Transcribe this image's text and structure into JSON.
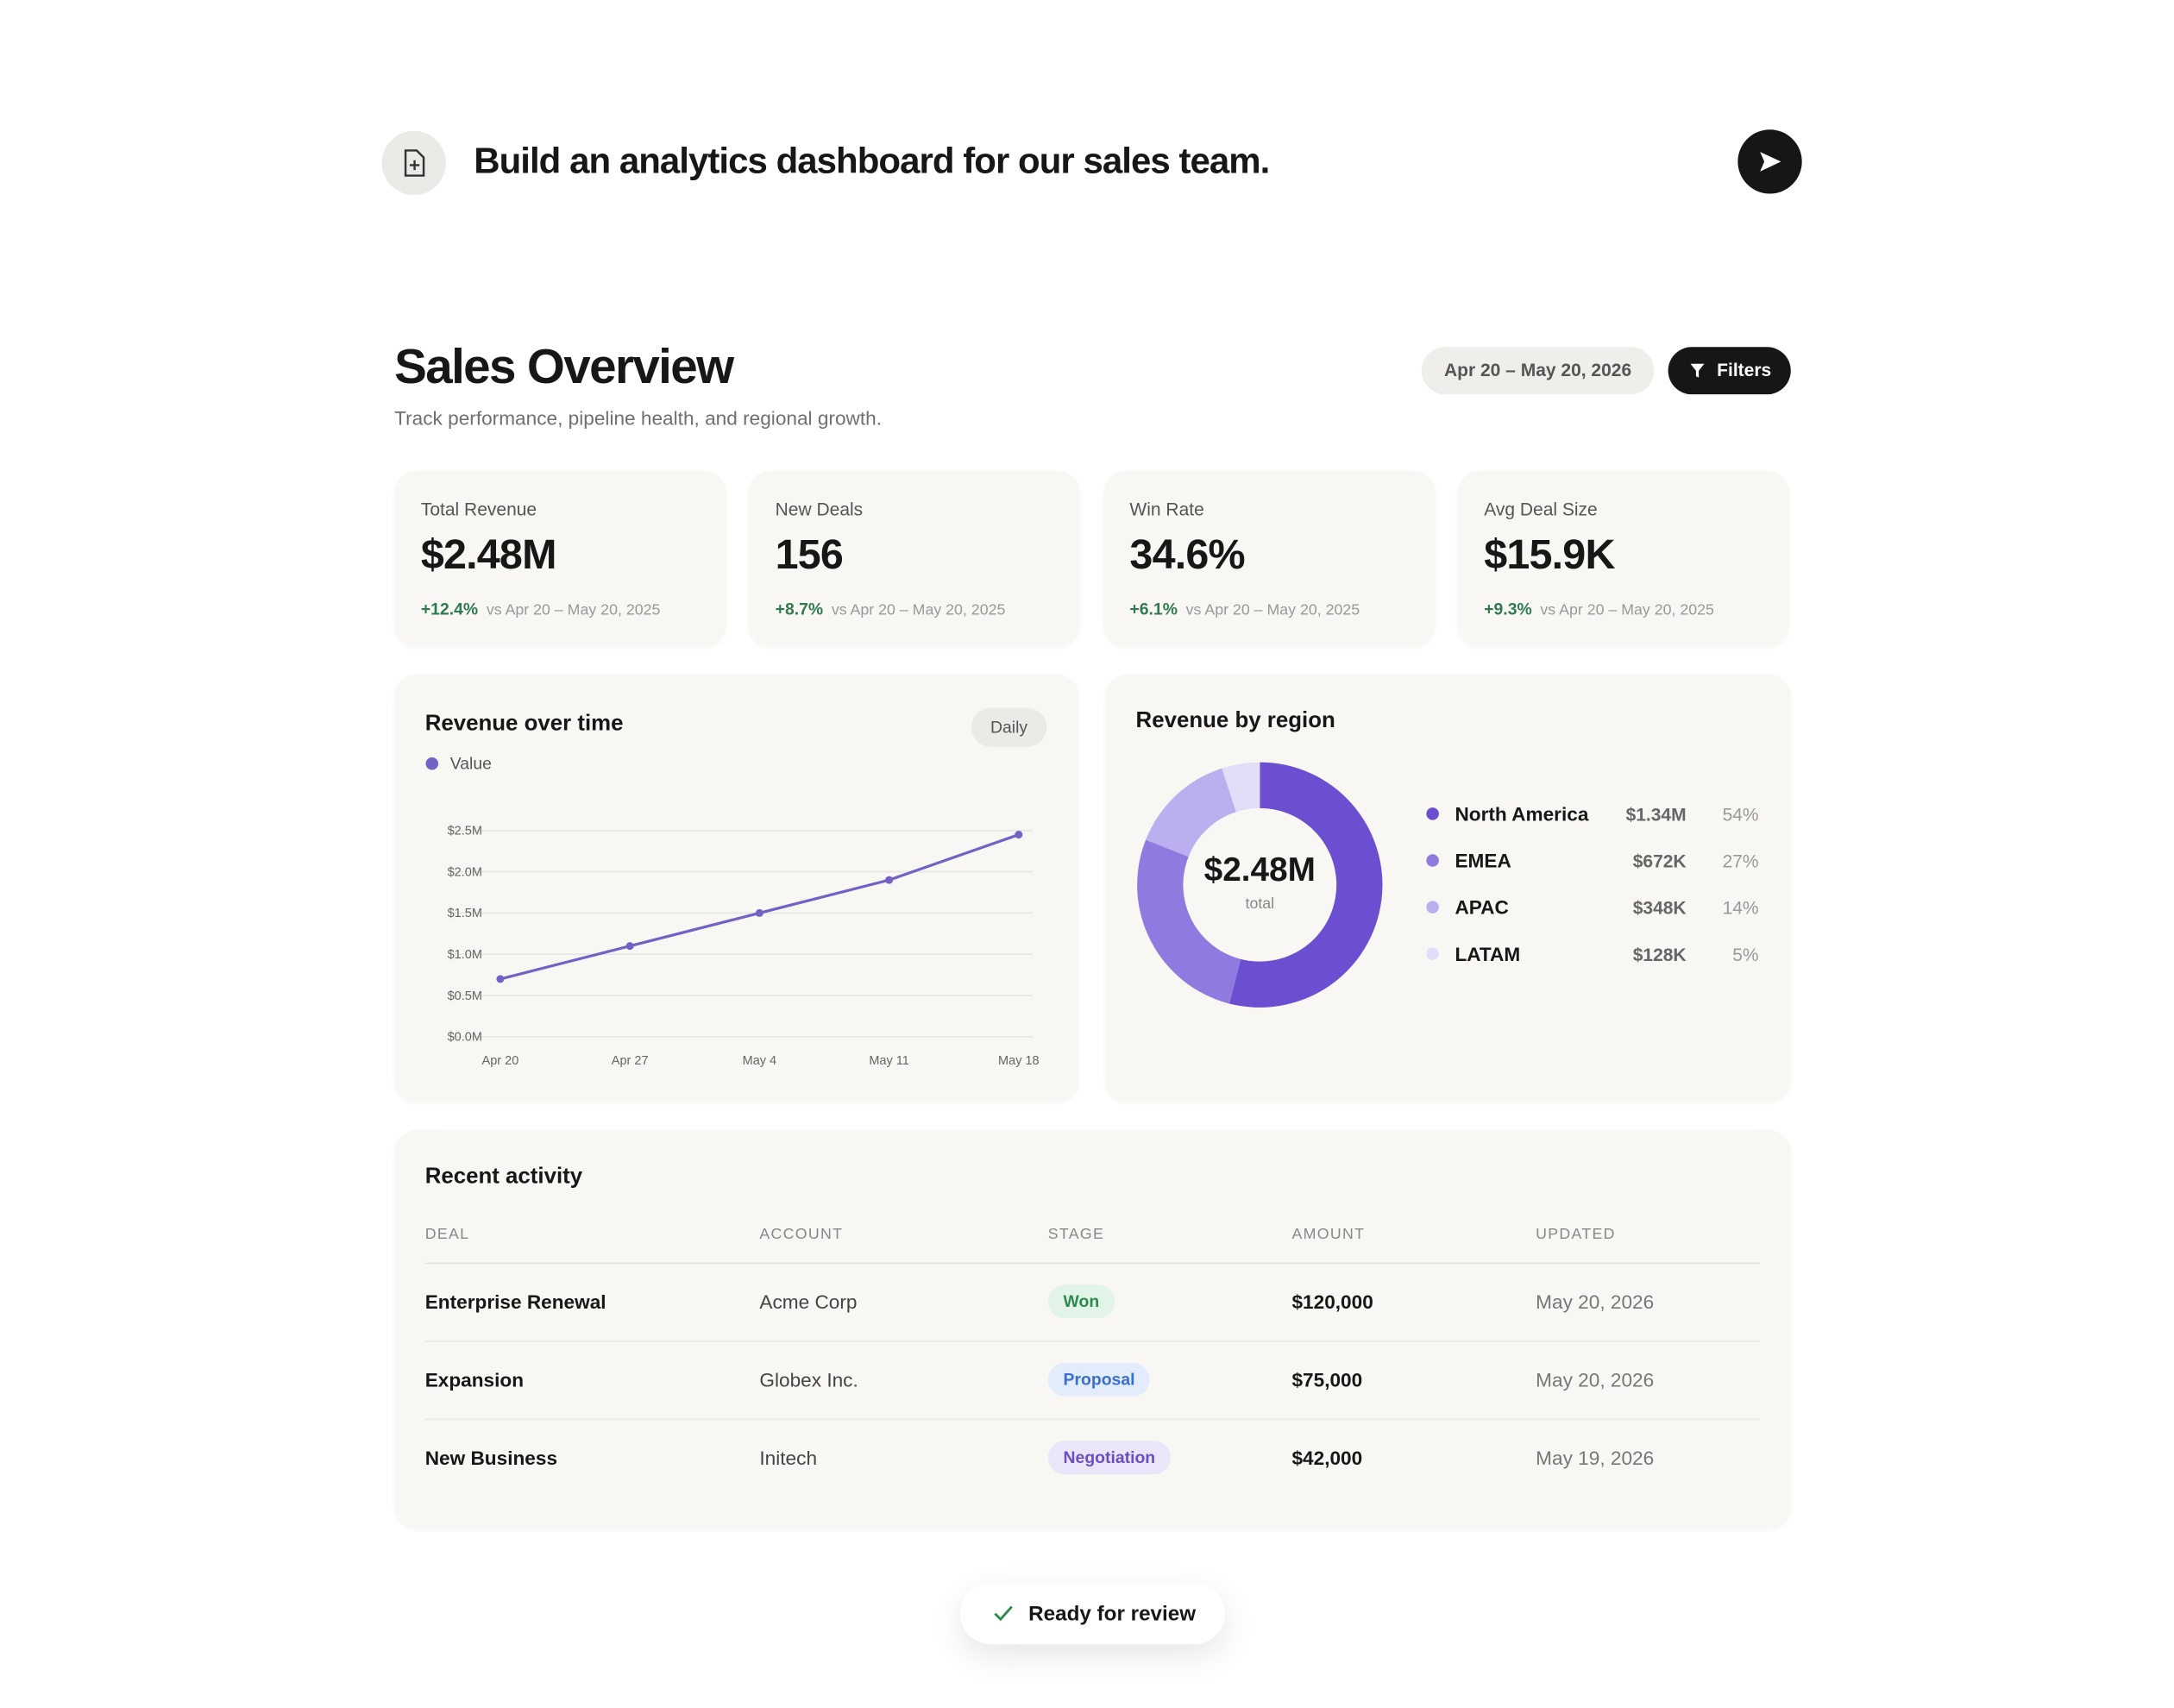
{
  "prompt": {
    "text": "Build an analytics dashboard for our sales team."
  },
  "header": {
    "title": "Sales Overview",
    "subtitle": "Track performance, pipeline health, and regional growth.",
    "date_range": "Apr 20 – May 20, 2026",
    "filters": "Filters"
  },
  "kpis": [
    {
      "label": "Total Revenue",
      "value": "$2.48M",
      "change": "+12.4%",
      "comparison": "vs Apr 20 – May 20, 2025"
    },
    {
      "label": "New Deals",
      "value": "156",
      "change": "+8.7%",
      "comparison": "vs Apr 20 – May 20, 2025"
    },
    {
      "label": "Win Rate",
      "value": "34.6%",
      "change": "+6.1%",
      "comparison": "vs Apr 20 – May 20, 2025"
    },
    {
      "label": "Avg Deal Size",
      "value": "$15.9K",
      "change": "+9.3%",
      "comparison": "vs Apr 20 – May 20, 2025"
    }
  ],
  "chart_data": [
    {
      "type": "line",
      "title": "Revenue over time",
      "toggle": "Daily",
      "categories": [
        "Apr 20",
        "Apr 27",
        "May 4",
        "May 11",
        "May 18"
      ],
      "series": [
        {
          "name": "Value",
          "color": "#7262c6",
          "values": [
            0.7,
            1.1,
            1.5,
            1.9,
            2.45
          ]
        }
      ],
      "ylim": [
        0,
        2.5
      ],
      "yticks": [
        {
          "value": 0,
          "label": "$0.0M"
        },
        {
          "value": 0.5,
          "label": "$0.5M"
        },
        {
          "value": 1,
          "label": "$1.0M"
        },
        {
          "value": 1.5,
          "label": "$1.5M"
        },
        {
          "value": 2,
          "label": "$2.0M"
        },
        {
          "value": 2.5,
          "label": "$2.5M"
        }
      ],
      "grid": true
    },
    {
      "type": "donut",
      "title": "Revenue by region",
      "categories": [
        "North America",
        "EMEA",
        "APAC",
        "LATAM"
      ],
      "values": [
        54,
        27,
        14,
        5
      ],
      "value_labels": [
        "54%",
        "27%",
        "14%",
        "5%"
      ],
      "amounts": [
        "$1.34M",
        "$672K",
        "$348K",
        "$128K"
      ],
      "colors": [
        "#6b4fd0",
        "#8f7ae0",
        "#bbaff0",
        "#e3ddf8"
      ],
      "center_value": "$2.48M",
      "center_label": "total"
    }
  ],
  "table": {
    "title": "Recent activity",
    "columns": [
      "DEAL",
      "ACCOUNT",
      "STAGE",
      "AMOUNT",
      "UPDATED"
    ],
    "rows": [
      [
        "Enterprise Renewal",
        "Acme Corp",
        "Won",
        "$120,000",
        "May 20, 2026"
      ],
      [
        "Expansion",
        "Globex Inc.",
        "Proposal",
        "$75,000",
        "May 20, 2026"
      ],
      [
        "New Business",
        "Initech",
        "Negotiation",
        "$42,000",
        "May 19, 2026"
      ]
    ]
  },
  "status": "Ready for review"
}
